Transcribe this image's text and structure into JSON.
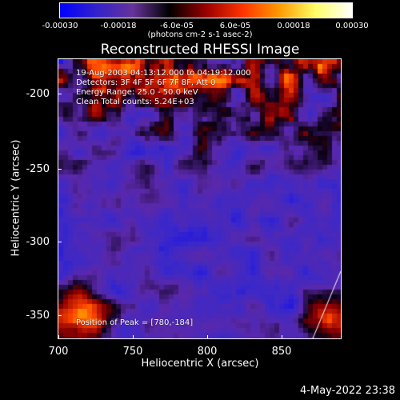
{
  "colorbar": {
    "ticks": [
      "-0.00030",
      "-0.00018",
      "-6.0e-05",
      "6.0e-05",
      "0.00018",
      "0.00030"
    ],
    "label": "(photons cm-2 s-1 asec-2)",
    "colors": [
      "#0000ff",
      "#3322cc",
      "#663399",
      "#000000",
      "#990000",
      "#ff3300",
      "#ff9900",
      "#ffff66",
      "#ffffff"
    ]
  },
  "title": "Reconstructed RHESSI Image",
  "info": {
    "time": "19-Aug-2003 04:13:12.000 to 04:19:12.000",
    "detectors": "Detectors: 3F 4F 5F 6F 7F 8F, Att 0",
    "energy": "Energy Range: 25.0 - 50.0 keV",
    "clean": "Clean     Total counts: 5.24E+03",
    "peak": "Position of Peak = [780,-184]"
  },
  "axes": {
    "xlabel": "Heliocentric X (arcsec)",
    "ylabel": "Heliocentric Y (arcsec)",
    "xticks": [
      "700",
      "750",
      "800",
      "850"
    ],
    "yticks": [
      "-200",
      "-250",
      "-300",
      "-350"
    ]
  },
  "footer": {
    "date": "4-May-2022 23:38"
  },
  "chart_data": {
    "type": "heatmap",
    "title": "Reconstructed RHESSI Image",
    "xlabel": "Heliocentric X (arcsec)",
    "ylabel": "Heliocentric Y (arcsec)",
    "xlim": [
      700,
      890
    ],
    "ylim": [
      -370,
      -180
    ],
    "colorbar_range": [
      -0.0003,
      0.0003
    ],
    "peak": [
      780,
      -184
    ]
  }
}
